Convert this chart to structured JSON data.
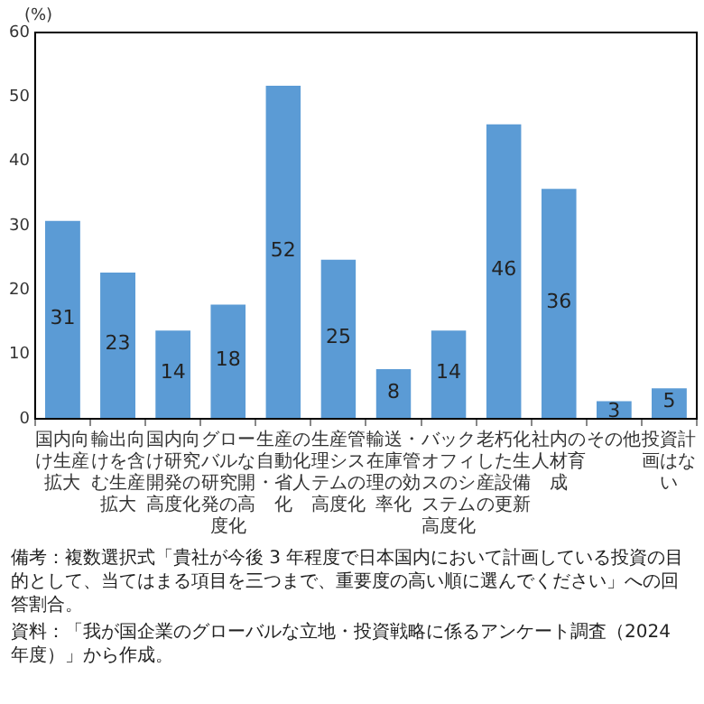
{
  "chart_data": {
    "type": "bar",
    "ylabel": "(%)",
    "categories": [
      "国内向け生産拡大",
      "輸出向けを含む生産拡大",
      "国内向け研究開発の高度化",
      "グローバルな研究開発の高度化",
      "生産の自動化・省人化",
      "生産管理システムの高度化",
      "輸送・在庫管理の効率化",
      "バックオフィスのシステム高度化",
      "老朽化した生産設備の更新",
      "社内の人材育成",
      "その他",
      "投資計画はない"
    ],
    "values": [
      31,
      23,
      14,
      18,
      52,
      25,
      8,
      14,
      46,
      36,
      3,
      5
    ],
    "color": "#5b9bd5",
    "ylim": [
      0,
      60
    ],
    "yticks": [
      0,
      10,
      20,
      30,
      40,
      50,
      60
    ],
    "grid": false,
    "legend": false,
    "data_labels": true,
    "annotations": [
      "備考：複数選択式「貴社が今後 3 年程度で日本国内において計画している投資の目的として、当てはまる項目を三つまで、重要度の高い順に選んでください」への回答割合。",
      "資料：「我が国企業のグローバルな立地・投資戦略に係るアンケート調査（2024 年度）」から作成。"
    ]
  }
}
